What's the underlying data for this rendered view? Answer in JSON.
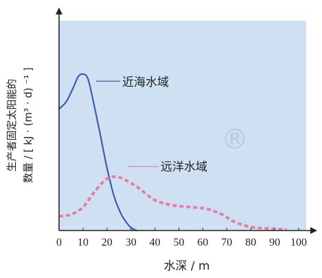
{
  "chart_data": {
    "type": "line",
    "xlabel": "水深 / m",
    "ylabel_line1": "生产者固定太阳能的",
    "ylabel_line2": "数量 / [ kJ · (m³ · d) ⁻¹ ]",
    "xlim": [
      0,
      100
    ],
    "ylim": [
      0,
      100
    ],
    "x_ticks": [
      0,
      10,
      20,
      30,
      40,
      50,
      60,
      70,
      80,
      90,
      100
    ],
    "plot_background": "#cfe0f2",
    "series": [
      {
        "name": "近海水域",
        "style": "solid",
        "color": "#3a5db0",
        "x": [
          0,
          3,
          6,
          8,
          10,
          12,
          14,
          17,
          20,
          23,
          26,
          29,
          31,
          32.5
        ],
        "y": [
          68,
          72,
          80,
          86,
          87.5,
          85,
          74,
          55,
          35,
          19,
          9,
          3,
          0.8,
          0
        ]
      },
      {
        "name": "远洋水域",
        "style": "dashed",
        "color": "#e57fa8",
        "x": [
          0,
          5,
          10,
          15,
          20,
          24,
          28,
          33,
          40,
          48,
          56,
          62,
          68,
          73,
          80,
          88,
          95
        ],
        "y": [
          8,
          9,
          13,
          22,
          29,
          30,
          28,
          24,
          17,
          14,
          13,
          12,
          9,
          5,
          2,
          1,
          0.5
        ]
      }
    ]
  },
  "watermark": "®"
}
